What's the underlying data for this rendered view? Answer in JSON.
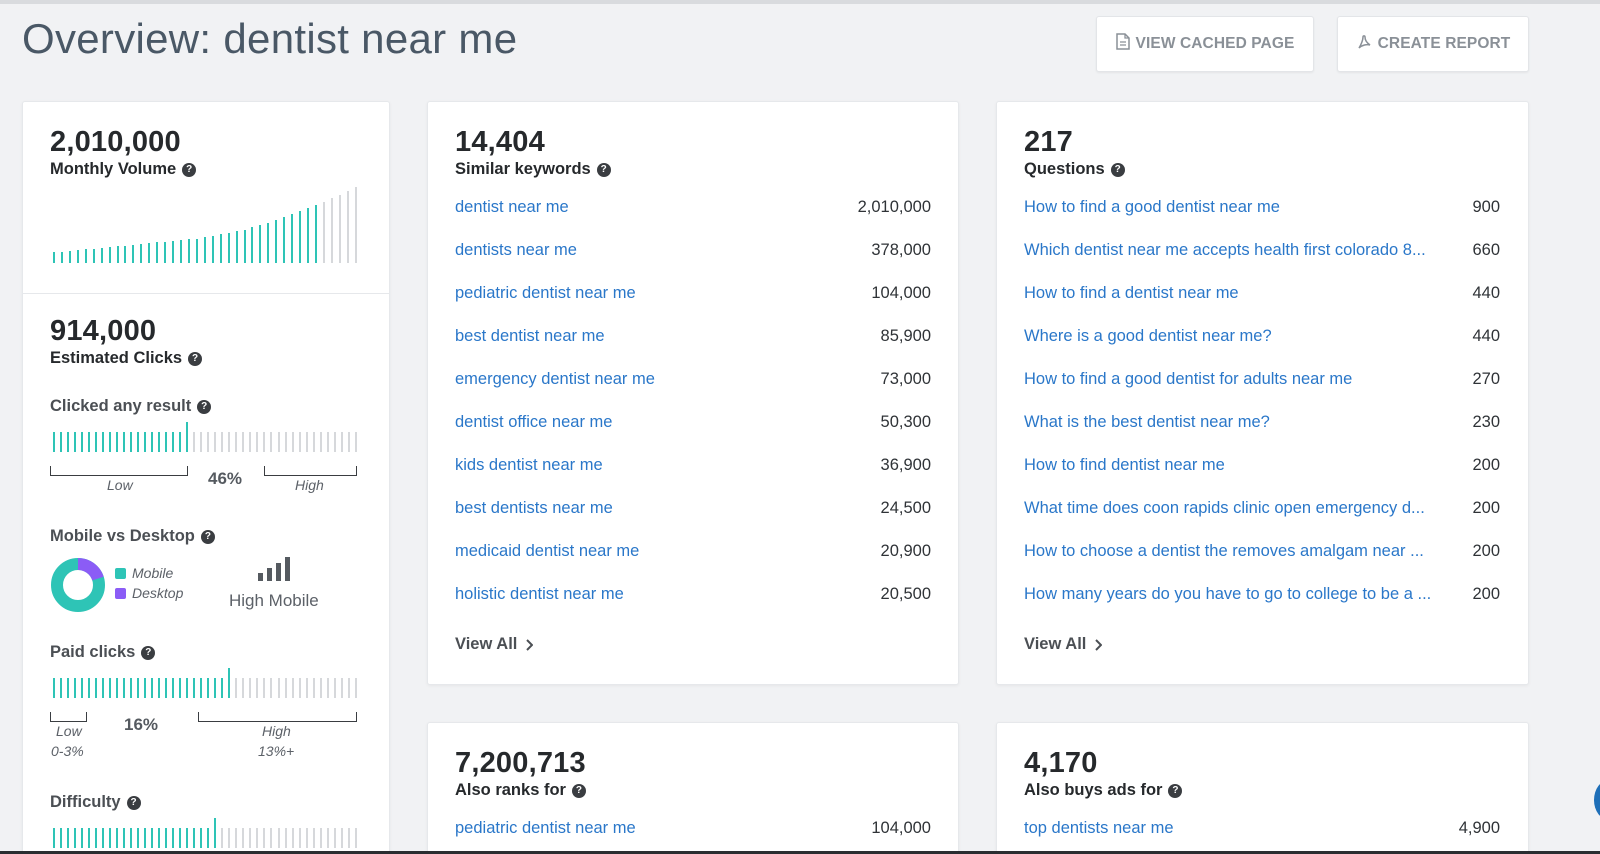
{
  "header": {
    "title": "Overview: dentist near me",
    "view_cached_label": "VIEW CACHED PAGE",
    "create_report_label": "CREATE REPORT"
  },
  "volume": {
    "value": "2,010,000",
    "label": "Monthly Volume",
    "trend_bars": [
      0.14,
      0.15,
      0.16,
      0.17,
      0.18,
      0.19,
      0.2,
      0.21,
      0.22,
      0.23,
      0.24,
      0.25,
      0.26,
      0.27,
      0.28,
      0.29,
      0.3,
      0.31,
      0.32,
      0.34,
      0.36,
      0.38,
      0.4,
      0.42,
      0.44,
      0.47,
      0.5,
      0.53,
      0.56,
      0.6,
      0.64,
      0.68,
      0.72,
      0.76,
      0.8,
      0.85,
      0.9,
      0.95,
      1.0
    ],
    "trend_highlight_count": 34
  },
  "clicks": {
    "value": "914,000",
    "label": "Estimated Clicks",
    "clicked_any": {
      "label": "Clicked any result",
      "percent": "46%",
      "level": 0.46,
      "low_label": "Low",
      "high_label": "High"
    },
    "mobile_desktop": {
      "label": "Mobile vs Desktop",
      "legend_mobile": "Mobile",
      "legend_desktop": "Desktop",
      "mobile_share": 0.8,
      "summary": "High Mobile",
      "mobile_color": "#2ec4b6",
      "desktop_color": "#8b5cf6"
    },
    "paid": {
      "label": "Paid clicks",
      "percent": "16%",
      "level": 0.6,
      "low_label": "Low",
      "low_range": "0-3%",
      "high_label": "High",
      "high_range": "13%+"
    },
    "difficulty": {
      "label": "Difficulty",
      "level": 0.55
    }
  },
  "similar": {
    "value": "14,404",
    "label": "Similar keywords",
    "rows": [
      {
        "keyword": "dentist near me",
        "volume": "2,010,000"
      },
      {
        "keyword": "dentists near me",
        "volume": "378,000"
      },
      {
        "keyword": "pediatric dentist near me",
        "volume": "104,000"
      },
      {
        "keyword": "best dentist near me",
        "volume": "85,900"
      },
      {
        "keyword": "emergency dentist near me",
        "volume": "73,000"
      },
      {
        "keyword": "dentist office near me",
        "volume": "50,300"
      },
      {
        "keyword": "kids dentist near me",
        "volume": "36,900"
      },
      {
        "keyword": "best dentists near me",
        "volume": "24,500"
      },
      {
        "keyword": "medicaid dentist near me",
        "volume": "20,900"
      },
      {
        "keyword": "holistic dentist near me",
        "volume": "20,500"
      }
    ],
    "view_all": "View All"
  },
  "questions": {
    "value": "217",
    "label": "Questions",
    "rows": [
      {
        "keyword": "How to find a good dentist near me",
        "volume": "900"
      },
      {
        "keyword": "Which dentist near me accepts health first colorado 8...",
        "volume": "660"
      },
      {
        "keyword": "How to find a dentist near me",
        "volume": "440"
      },
      {
        "keyword": "Where is a good dentist near me?",
        "volume": "440"
      },
      {
        "keyword": "How to find a good dentist for adults near me",
        "volume": "270"
      },
      {
        "keyword": "What is the best dentist near me?",
        "volume": "230"
      },
      {
        "keyword": "How to find dentist near me",
        "volume": "200"
      },
      {
        "keyword": "What time does coon rapids clinic open emergency d...",
        "volume": "200"
      },
      {
        "keyword": "How to choose a dentist the removes amalgam near ...",
        "volume": "200"
      },
      {
        "keyword": "How many years do you have to go to college to be a ...",
        "volume": "200"
      }
    ],
    "view_all": "View All"
  },
  "also_ranks": {
    "value": "7,200,713",
    "label": "Also ranks for",
    "rows": [
      {
        "keyword": "pediatric dentist near me",
        "volume": "104,000"
      }
    ]
  },
  "also_buys": {
    "value": "4,170",
    "label": "Also buys ads for",
    "rows": [
      {
        "keyword": "top dentists near me",
        "volume": "4,900"
      }
    ]
  }
}
